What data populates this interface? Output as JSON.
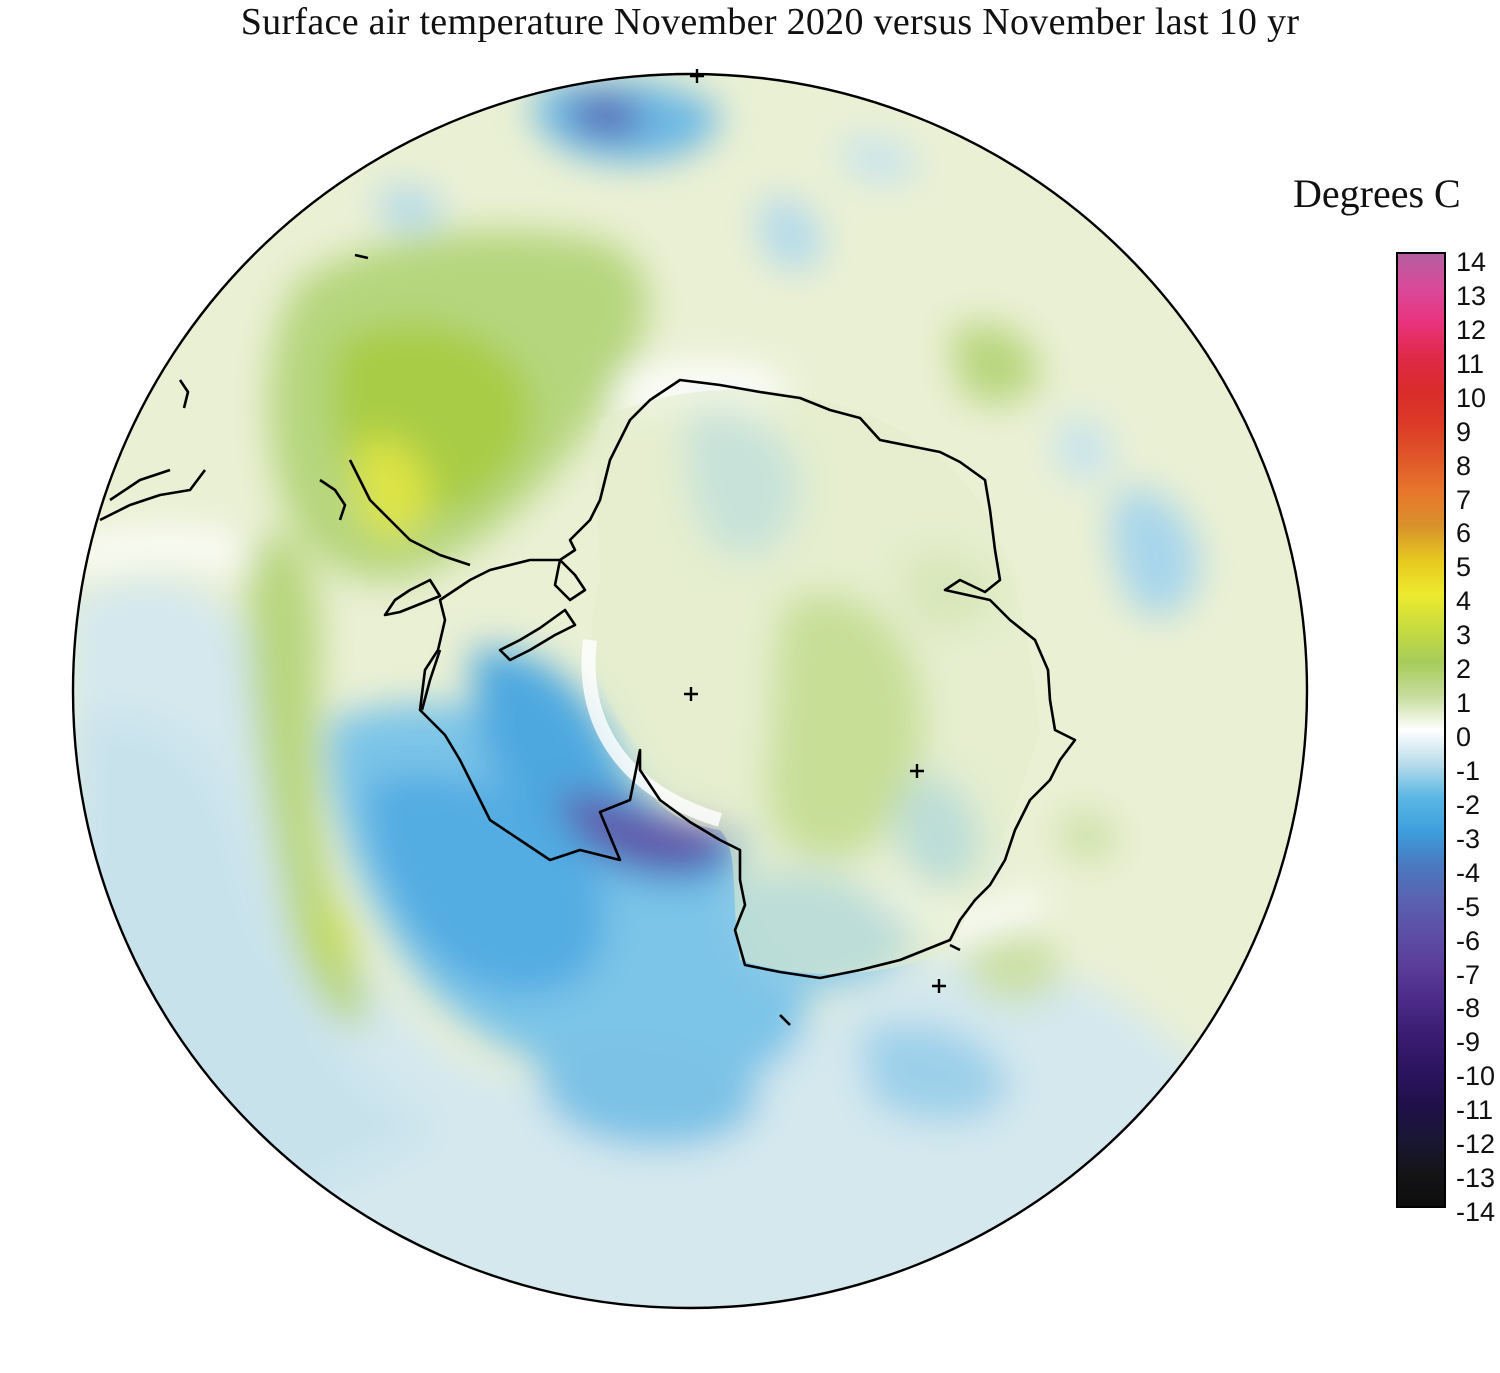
{
  "title": "Surface air temperature November 2020 versus November last 10 yr",
  "colorbar": {
    "units_label": "Degrees C",
    "ticks": [
      "14",
      "13",
      "12",
      "11",
      "10",
      "9",
      "8",
      "7",
      "6",
      "5",
      "4",
      "3",
      "2",
      "1",
      "0",
      "-1",
      "-2",
      "-3",
      "-4",
      "-5",
      "-6",
      "-7",
      "-8",
      "-9",
      "-10",
      "-11",
      "-12",
      "-13",
      "-14"
    ],
    "colors": [
      "#b45fa0",
      "#d94a9a",
      "#e8337e",
      "#e02a4a",
      "#da2b2b",
      "#dc3a28",
      "#e0572a",
      "#e8762c",
      "#d8922c",
      "#e6c81e",
      "#eeea2e",
      "#c8dc3e",
      "#a6cc5a",
      "#c6dc9c",
      "#ffffff",
      "#b8dcea",
      "#5ab6e4",
      "#3c9edc",
      "#4a78c0",
      "#5a62b0",
      "#5c4ea6",
      "#5a3c98",
      "#4a2a86",
      "#3a1c72",
      "#2c1460",
      "#20104a",
      "#1a1636",
      "#141418",
      "#0e0e0e"
    ],
    "range": [
      -14,
      14
    ]
  },
  "map": {
    "projection": "south polar stereographic",
    "background_color": "#eaf0d4",
    "pole_markers": [
      "+",
      "+",
      "+"
    ]
  }
}
